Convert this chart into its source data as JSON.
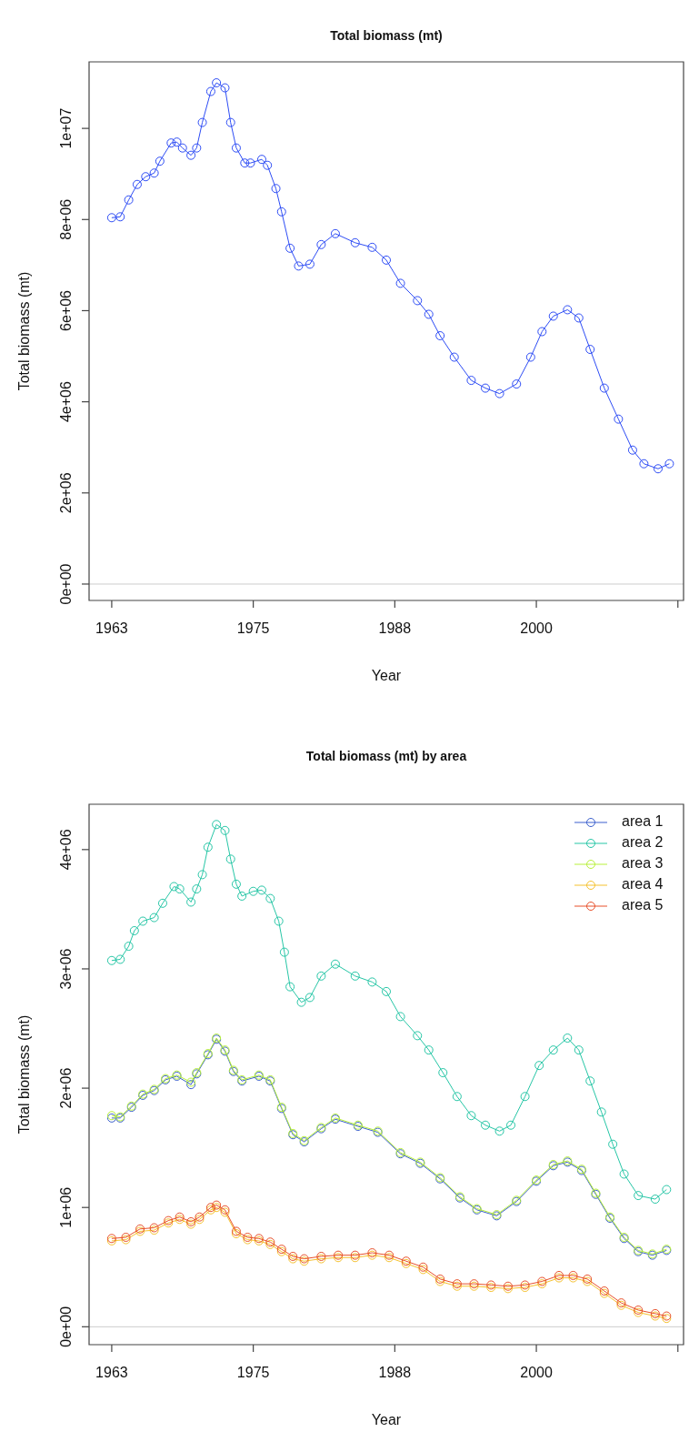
{
  "chart_data": [
    {
      "type": "line",
      "title": "Total biomass (mt)",
      "xlabel": "Year",
      "ylabel": "Total biomass (mt)",
      "marker": "circle",
      "xlim": [
        1961,
        2013.5
      ],
      "xticks": [
        {
          "value": 1963,
          "label": "1963"
        },
        {
          "value": 1975.5,
          "label": "1975"
        },
        {
          "value": 1988,
          "label": "1988"
        },
        {
          "value": 2000.5,
          "label": "2000"
        },
        {
          "value": 2013,
          "label": null
        }
      ],
      "ylim": [
        -360000,
        11460000
      ],
      "yticks": [
        {
          "value": 0,
          "label": "0e+00"
        },
        {
          "value": 2000000,
          "label": "2e+06"
        },
        {
          "value": 4000000,
          "label": "4e+06"
        },
        {
          "value": 6000000,
          "label": "6e+06"
        },
        {
          "value": 8000000,
          "label": "8e+06"
        },
        {
          "value": 10000000,
          "label": "1e+07"
        }
      ],
      "ref_lines": [
        {
          "axis": "y",
          "value": 0,
          "color": "#cccccc"
        }
      ],
      "series": [
        {
          "color": "#2d4cf5",
          "x": [
            1963,
            1963.75,
            1964.5,
            1965.25,
            1966,
            1966.75,
            1967.25,
            1968.25,
            1968.75,
            1969.25,
            1970,
            1970.5,
            1971,
            1971.75,
            1972.25,
            1973,
            1973.5,
            1974,
            1974.75,
            1975.25,
            1976.25,
            1976.75,
            1977.5,
            1978,
            1978.75,
            1979.5,
            1980.5,
            1981.5,
            1982.75,
            1984.5,
            1986,
            1987.25,
            1988.5,
            1990,
            1991,
            1992,
            1993.25,
            1994.75,
            1996,
            1997.25,
            1998.75,
            2000,
            2001,
            2002,
            2003.25,
            2004.25,
            2005.25,
            2006.5,
            2007.75,
            2009,
            2010,
            2011.25,
            2012.25
          ],
          "values": [
            8040000,
            8060000,
            8430000,
            8770000,
            8940000,
            9020000,
            9280000,
            9680000,
            9700000,
            9570000,
            9410000,
            9570000,
            10130000,
            10810000,
            11000000,
            10890000,
            10130000,
            9570000,
            9240000,
            9240000,
            9320000,
            9190000,
            8680000,
            8170000,
            7370000,
            6980000,
            7020000,
            7450000,
            7690000,
            7490000,
            7390000,
            7110000,
            6600000,
            6220000,
            5920000,
            5450000,
            4980000,
            4470000,
            4300000,
            4180000,
            4390000,
            4980000,
            5540000,
            5880000,
            6020000,
            5840000,
            5150000,
            4300000,
            3620000,
            2940000,
            2640000,
            2530000,
            2640000
          ]
        }
      ]
    },
    {
      "type": "line",
      "title": "Total biomass (mt) by area",
      "xlabel": "Year",
      "ylabel": "Total biomass (mt)",
      "marker": "circle",
      "legend": "top right",
      "xlim": [
        1961,
        2013.5
      ],
      "xticks": [
        {
          "value": 1963,
          "label": "1963"
        },
        {
          "value": 1975.5,
          "label": "1975"
        },
        {
          "value": 1988,
          "label": "1988"
        },
        {
          "value": 2000.5,
          "label": "2000"
        },
        {
          "value": 2013,
          "label": null
        }
      ],
      "ylim": [
        -150000,
        4380000
      ],
      "yticks": [
        {
          "value": 0,
          "label": "0e+00"
        },
        {
          "value": 1000000,
          "label": "1e+06"
        },
        {
          "value": 2000000,
          "label": "2e+06"
        },
        {
          "value": 3000000,
          "label": "3e+06"
        },
        {
          "value": 4000000,
          "label": "4e+06"
        }
      ],
      "ref_lines": [
        {
          "axis": "y",
          "value": 0,
          "color": "#cccccc"
        }
      ],
      "series": [
        {
          "name": "area 1",
          "color": "#3a5fcd",
          "x": [
            1963,
            1963.75,
            1964.75,
            1965.75,
            1966.75,
            1967.75,
            1968.75,
            1970,
            1970.5,
            1971.5,
            1972.25,
            1973,
            1973.75,
            1974.5,
            1976,
            1977,
            1978,
            1979,
            1980,
            1981.5,
            1982.75,
            1984.75,
            1986.5,
            1988.5,
            1990.25,
            1992,
            1993.75,
            1995.25,
            1997,
            1998.75,
            2000.5,
            2002,
            2003.25,
            2004.5,
            2005.75,
            2007,
            2008.25,
            2009.5,
            2010.75,
            2012
          ],
          "values": [
            1750000,
            1750000,
            1840000,
            1940000,
            1980000,
            2070000,
            2100000,
            2030000,
            2120000,
            2280000,
            2410000,
            2310000,
            2140000,
            2060000,
            2100000,
            2060000,
            1830000,
            1610000,
            1550000,
            1660000,
            1740000,
            1680000,
            1630000,
            1450000,
            1370000,
            1240000,
            1080000,
            980000,
            930000,
            1050000,
            1220000,
            1350000,
            1380000,
            1310000,
            1110000,
            910000,
            740000,
            630000,
            600000,
            640000
          ]
        },
        {
          "name": "area 2",
          "color": "#26c6a6",
          "x": [
            1963,
            1963.75,
            1964.5,
            1965,
            1965.75,
            1966.75,
            1967.5,
            1968.5,
            1969,
            1970,
            1970.5,
            1971,
            1971.5,
            1972.25,
            1973,
            1973.5,
            1974,
            1974.5,
            1975.5,
            1976.25,
            1977,
            1977.75,
            1978.25,
            1978.75,
            1979.75,
            1980.5,
            1981.5,
            1982.75,
            1984.5,
            1986,
            1987.25,
            1988.5,
            1990,
            1991,
            1992.25,
            1993.5,
            1994.75,
            1996,
            1997.25,
            1998.25,
            1999.5,
            2000.75,
            2002,
            2003.25,
            2004.25,
            2005.25,
            2006.25,
            2007.25,
            2008.25,
            2009.5,
            2011,
            2012
          ],
          "values": [
            3070000,
            3080000,
            3190000,
            3320000,
            3400000,
            3430000,
            3550000,
            3690000,
            3670000,
            3560000,
            3670000,
            3790000,
            4020000,
            4210000,
            4160000,
            3920000,
            3710000,
            3610000,
            3650000,
            3660000,
            3590000,
            3400000,
            3140000,
            2850000,
            2720000,
            2760000,
            2940000,
            3040000,
            2940000,
            2890000,
            2810000,
            2600000,
            2440000,
            2320000,
            2130000,
            1930000,
            1770000,
            1690000,
            1640000,
            1690000,
            1930000,
            2190000,
            2320000,
            2420000,
            2320000,
            2060000,
            1800000,
            1530000,
            1280000,
            1100000,
            1070000,
            1150000
          ]
        },
        {
          "name": "area 3",
          "color": "#b8f03a",
          "x": [
            1963,
            1963.75,
            1964.75,
            1965.75,
            1966.75,
            1967.75,
            1968.75,
            1970,
            1970.5,
            1971.5,
            1972.25,
            1973,
            1973.75,
            1974.5,
            1976,
            1977,
            1978,
            1979,
            1980,
            1981.5,
            1982.75,
            1984.75,
            1986.5,
            1988.5,
            1990.25,
            1992,
            1993.75,
            1995.25,
            1997,
            1998.75,
            2000.5,
            2002,
            2003.25,
            2004.5,
            2005.75,
            2007,
            2008.25,
            2009.5,
            2010.75,
            2012
          ],
          "values": [
            1770000,
            1760000,
            1850000,
            1950000,
            1990000,
            2080000,
            2110000,
            2050000,
            2130000,
            2290000,
            2420000,
            2320000,
            2150000,
            2070000,
            2110000,
            2070000,
            1840000,
            1620000,
            1560000,
            1670000,
            1750000,
            1690000,
            1640000,
            1460000,
            1380000,
            1250000,
            1090000,
            990000,
            940000,
            1060000,
            1230000,
            1360000,
            1390000,
            1320000,
            1120000,
            920000,
            750000,
            640000,
            610000,
            650000
          ]
        },
        {
          "name": "area 4",
          "color": "#f5c12e",
          "x": [
            1963,
            1964.25,
            1965.5,
            1966.75,
            1968,
            1969,
            1970,
            1970.75,
            1971.75,
            1972.25,
            1973,
            1974,
            1975,
            1976,
            1977,
            1978,
            1979,
            1980,
            1981.5,
            1983,
            1984.5,
            1986,
            1987.5,
            1989,
            1990.5,
            1992,
            1993.5,
            1995,
            1996.5,
            1998,
            1999.5,
            2001,
            2002.5,
            2003.75,
            2005,
            2006.5,
            2008,
            2009.5,
            2011,
            2012
          ],
          "values": [
            720000,
            730000,
            800000,
            810000,
            870000,
            900000,
            860000,
            900000,
            980000,
            1000000,
            960000,
            780000,
            730000,
            720000,
            690000,
            630000,
            570000,
            550000,
            570000,
            580000,
            580000,
            600000,
            580000,
            530000,
            480000,
            380000,
            340000,
            340000,
            330000,
            320000,
            330000,
            360000,
            410000,
            410000,
            380000,
            280000,
            180000,
            120000,
            90000,
            70000
          ]
        },
        {
          "name": "area 5",
          "color": "#e8502a",
          "x": [
            1963,
            1964.25,
            1965.5,
            1966.75,
            1968,
            1969,
            1970,
            1970.75,
            1971.75,
            1972.25,
            1973,
            1974,
            1975,
            1976,
            1977,
            1978,
            1979,
            1980,
            1981.5,
            1983,
            1984.5,
            1986,
            1987.5,
            1989,
            1990.5,
            1992,
            1993.5,
            1995,
            1996.5,
            1998,
            1999.5,
            2001,
            2002.5,
            2003.75,
            2005,
            2006.5,
            2008,
            2009.5,
            2011,
            2012
          ],
          "values": [
            740000,
            750000,
            820000,
            830000,
            890000,
            920000,
            880000,
            920000,
            1000000,
            1020000,
            980000,
            800000,
            750000,
            740000,
            710000,
            650000,
            590000,
            570000,
            590000,
            600000,
            600000,
            620000,
            600000,
            550000,
            500000,
            400000,
            360000,
            360000,
            350000,
            340000,
            350000,
            380000,
            430000,
            430000,
            400000,
            300000,
            200000,
            140000,
            110000,
            90000
          ]
        }
      ]
    }
  ]
}
